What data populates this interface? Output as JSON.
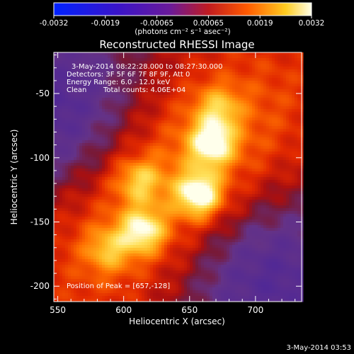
{
  "chart_data": {
    "type": "heatmap",
    "title": "Reconstructed RHESSI Image",
    "xlabel": "Heliocentric X (arcsec)",
    "ylabel": "Heliocentric Y (arcsec)",
    "xlim": [
      547,
      735
    ],
    "ylim": [
      -212,
      -18
    ],
    "x_ticks": [
      550,
      600,
      650,
      700
    ],
    "y_ticks": [
      -50,
      -100,
      -150,
      -200
    ],
    "colorbar": {
      "min": -0.0032,
      "max": 0.0032,
      "ticks": [
        "-0.0032",
        "-0.0019",
        "-0.00065",
        "0.00065",
        "0.0019",
        "0.0032"
      ],
      "unit_label": "(photons cm⁻² s⁻¹ asec⁻²)",
      "colormap": "rhessi: blue-purple-red-yellow-white"
    },
    "info": {
      "time_range": "3-May-2014 08:22:28.000 to 08:27:30.000",
      "detectors": "Detectors: 3F 5F 6F 7F 8F 9F, Att 0",
      "energy": "Energy Range: 6.0 - 12.0 keV",
      "method": "Clean",
      "counts": "Total counts: 4.06E+04",
      "peak": "Position of Peak = [657,-128]"
    },
    "peak": {
      "x": 657,
      "y": -128
    },
    "sources": [
      {
        "x": 667,
        "y": -89,
        "amp": 1.0
      },
      {
        "x": 657,
        "y": -128,
        "amp": 1.0
      },
      {
        "x": 614,
        "y": -157,
        "amp": 0.85
      },
      {
        "x": 672,
        "y": -62,
        "amp": 0.6
      },
      {
        "x": 612,
        "y": -118,
        "amp": 0.55
      },
      {
        "x": 588,
        "y": -172,
        "amp": 0.55
      }
    ]
  },
  "footer": {
    "timestamp": "3-May-2014 03:53"
  }
}
